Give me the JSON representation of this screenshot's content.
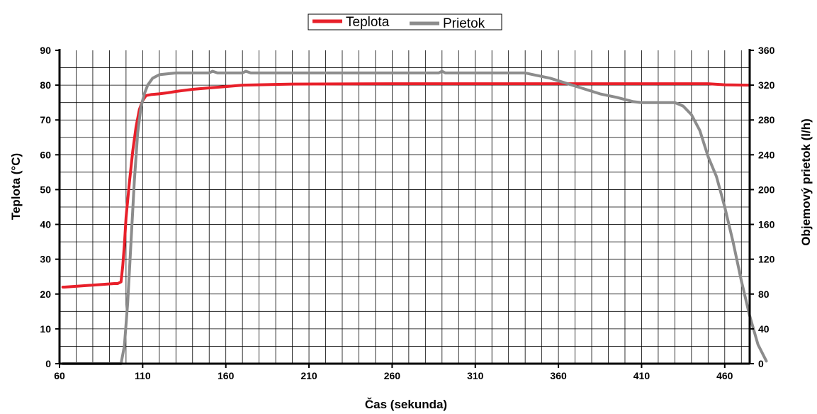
{
  "chart_data": {
    "type": "line",
    "xlabel": "Čas (sekunda)",
    "ylabel_left": "Teplota (°C)",
    "ylabel_right": "Objemový prietok (l/h)",
    "xlim": [
      60,
      475
    ],
    "ylim_left": [
      0,
      90
    ],
    "ylim_right": [
      0,
      360
    ],
    "x_ticks": [
      60,
      110,
      160,
      210,
      260,
      310,
      360,
      410,
      460
    ],
    "y_ticks_left": [
      0,
      10,
      20,
      30,
      40,
      50,
      60,
      70,
      80,
      90
    ],
    "y_ticks_right": [
      0,
      40,
      80,
      120,
      160,
      200,
      240,
      280,
      320,
      360
    ],
    "grid": true,
    "legend_position": "top-center",
    "series": [
      {
        "name": "Teplota",
        "axis": "left",
        "color": "#e8202a",
        "points": [
          [
            62,
            22
          ],
          [
            63,
            22
          ],
          [
            93,
            23
          ],
          [
            95,
            23
          ],
          [
            97,
            23.5
          ],
          [
            98,
            28
          ],
          [
            99,
            34
          ],
          [
            100,
            42
          ],
          [
            102,
            52
          ],
          [
            104,
            61
          ],
          [
            106,
            68
          ],
          [
            108,
            73
          ],
          [
            110,
            75.5
          ],
          [
            112,
            77
          ],
          [
            115,
            77.3
          ],
          [
            120,
            77.5
          ],
          [
            125,
            77.8
          ],
          [
            130,
            78.2
          ],
          [
            140,
            78.8
          ],
          [
            150,
            79.2
          ],
          [
            160,
            79.6
          ],
          [
            170,
            80
          ],
          [
            200,
            80.3
          ],
          [
            260,
            80.4
          ],
          [
            350,
            80.4
          ],
          [
            420,
            80.4
          ],
          [
            450,
            80.4
          ],
          [
            460,
            80.1
          ],
          [
            475,
            80
          ]
        ]
      },
      {
        "name": "Prietok",
        "axis": "right",
        "color": "#8c8c8c",
        "points": [
          [
            62,
            0
          ],
          [
            95,
            0
          ],
          [
            97,
            0
          ],
          [
            99,
            20
          ],
          [
            101,
            70
          ],
          [
            103,
            140
          ],
          [
            105,
            210
          ],
          [
            107,
            265
          ],
          [
            109,
            295
          ],
          [
            111,
            310
          ],
          [
            113,
            320
          ],
          [
            116,
            328
          ],
          [
            120,
            332
          ],
          [
            130,
            334
          ],
          [
            150,
            334
          ],
          [
            152,
            336
          ],
          [
            155,
            334
          ],
          [
            170,
            334
          ],
          [
            172,
            336
          ],
          [
            175,
            334
          ],
          [
            200,
            334
          ],
          [
            288,
            334
          ],
          [
            290,
            336
          ],
          [
            292,
            334
          ],
          [
            340,
            334
          ],
          [
            345,
            332
          ],
          [
            355,
            328
          ],
          [
            365,
            322
          ],
          [
            375,
            316
          ],
          [
            385,
            310
          ],
          [
            395,
            306
          ],
          [
            405,
            301
          ],
          [
            410,
            300
          ],
          [
            430,
            300
          ],
          [
            435,
            296
          ],
          [
            440,
            286
          ],
          [
            445,
            268
          ],
          [
            450,
            238
          ],
          [
            455,
            215
          ],
          [
            460,
            180
          ],
          [
            465,
            140
          ],
          [
            470,
            95
          ],
          [
            475,
            55
          ],
          [
            480,
            22
          ],
          [
            485,
            3
          ]
        ]
      }
    ]
  }
}
